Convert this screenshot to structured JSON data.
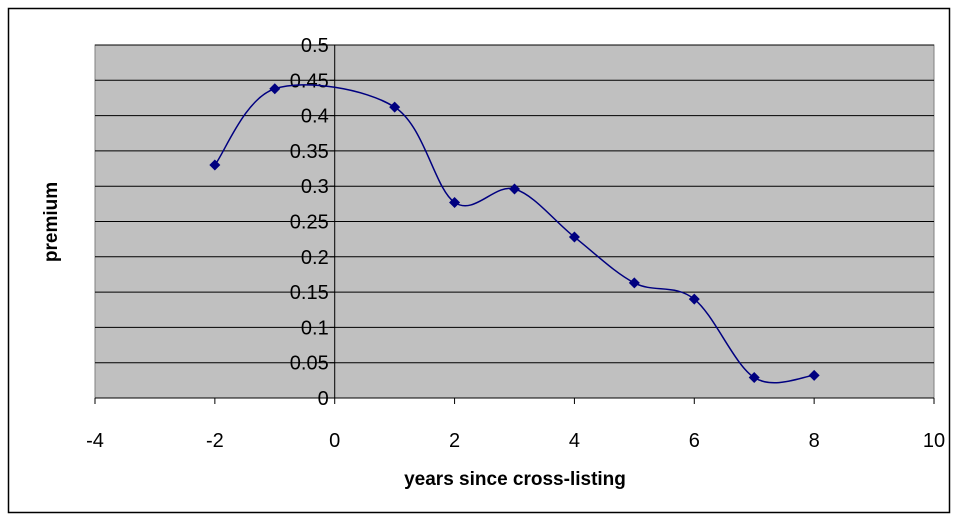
{
  "chart_data": {
    "type": "scatter",
    "smooth": true,
    "x_label": "years since cross-listing",
    "y_label": "premium",
    "x": [
      -2,
      -1,
      1,
      2,
      3,
      4,
      5,
      6,
      7,
      8
    ],
    "values": [
      0.33,
      0.438,
      0.412,
      0.277,
      0.296,
      0.228,
      0.163,
      0.14,
      0.029,
      0.032
    ],
    "color": "#000080",
    "plot_background": "#c0c0c0",
    "xlim": [
      -4,
      10
    ],
    "xticks": [
      -4,
      -2,
      0,
      2,
      4,
      6,
      8,
      10
    ],
    "ylim": [
      0,
      0.5
    ],
    "yticks": [
      0,
      0.05,
      0.1,
      0.15,
      0.2,
      0.25,
      0.3,
      0.35,
      0.4,
      0.45,
      0.5
    ],
    "grid": true
  }
}
